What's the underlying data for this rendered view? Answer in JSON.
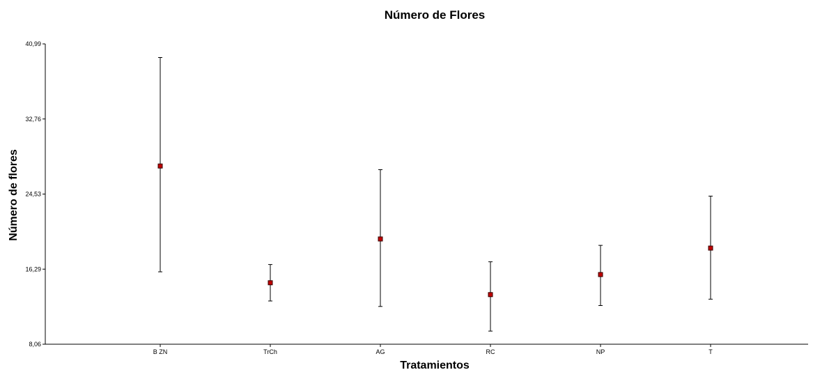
{
  "chart_data": {
    "type": "scatter",
    "title": "Número de Flores",
    "xlabel": "Tratamientos",
    "ylabel": "Número de flores",
    "categories": [
      "B ZN",
      "TrCh",
      "AG",
      "RC",
      "NP",
      "T"
    ],
    "means": [
      27.6,
      14.8,
      19.6,
      13.5,
      15.7,
      18.6
    ],
    "upper": [
      39.5,
      16.8,
      27.2,
      17.1,
      18.9,
      24.3
    ],
    "lower": [
      16.0,
      12.8,
      12.2,
      9.5,
      12.3,
      13.0
    ],
    "yticks": [
      "8,06",
      "16,29",
      "24,53",
      "32,76",
      "40,99"
    ],
    "ylim": [
      8.06,
      40.99
    ],
    "grid": false,
    "marker_color": "#c00000"
  }
}
